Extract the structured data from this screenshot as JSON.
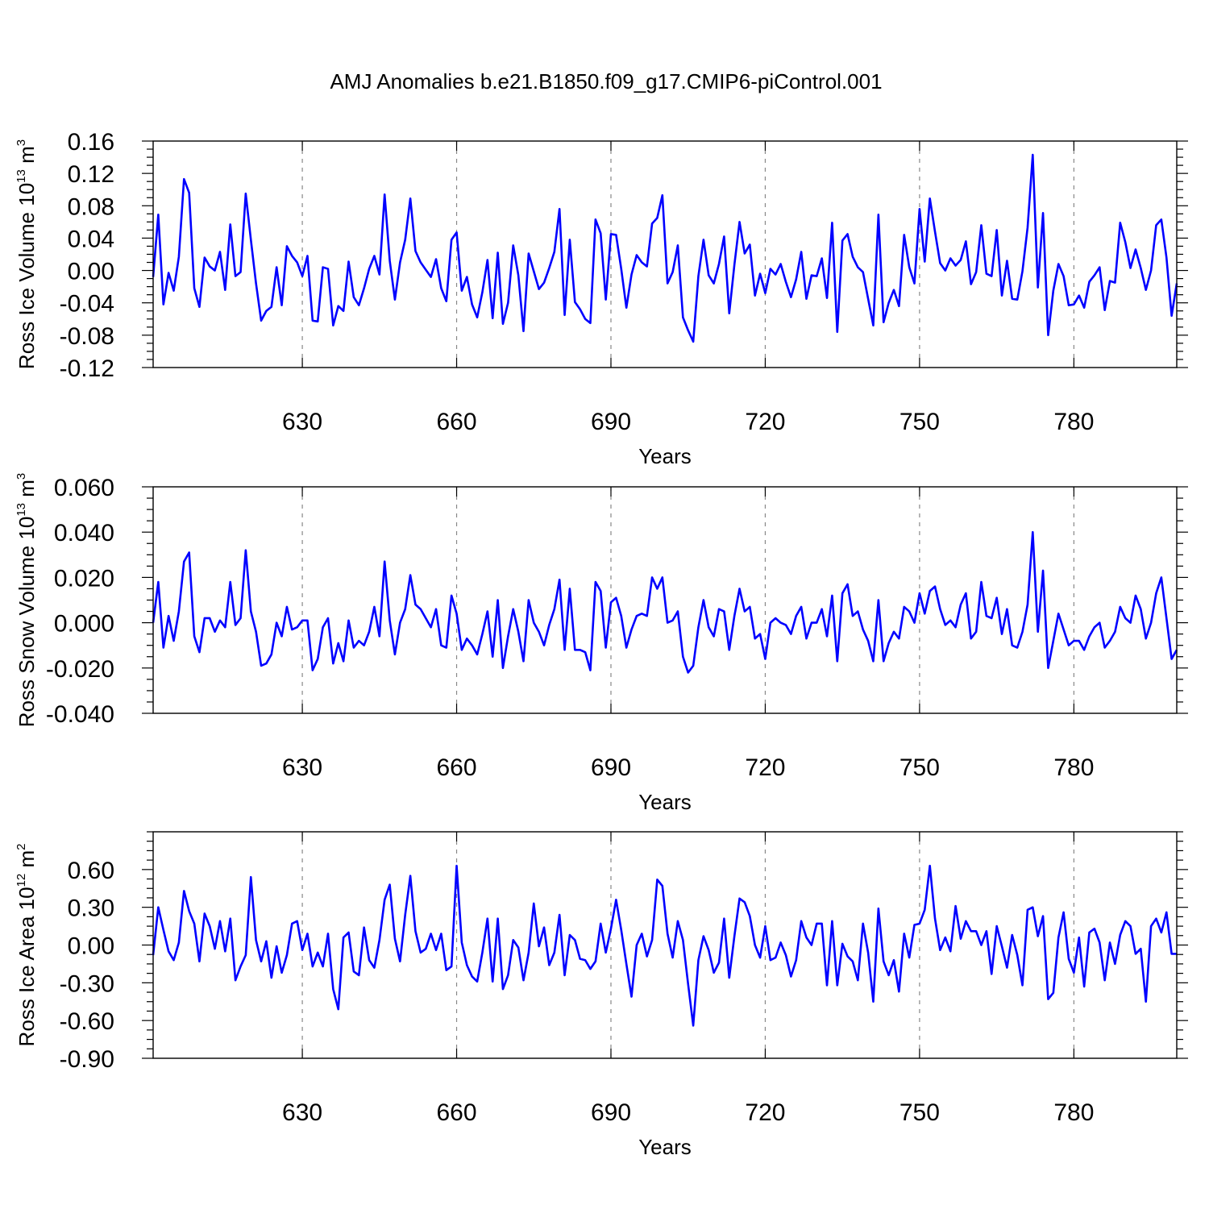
{
  "figure": {
    "title": "AMJ Anomalies b.e21.B1850.f09_g17.CMIP6-piControl.001"
  },
  "chart_data": [
    {
      "type": "line",
      "title": "AMJ Anomalies b.e21.B1850.f09_g17.CMIP6-piControl.001",
      "xlabel": "Years",
      "ylabel": "Ross Ice Volume 10",
      "ylabel_exp": "13",
      "ylabel_unit": "m",
      "ylabel_unit_exp": "3",
      "xlim": [
        601,
        800
      ],
      "ylim": [
        -0.12,
        0.16
      ],
      "xticks": [
        "630",
        "660",
        "690",
        "720",
        "750",
        "780"
      ],
      "yticks": [
        "0.16",
        "0.12",
        "0.08",
        "0.04",
        "0.00",
        "-0.04",
        "-0.08",
        "-0.12"
      ],
      "grid": "vertical dashed",
      "color": "#0000ff",
      "values": [
        -0.008,
        0.069,
        -0.042,
        -0.003,
        -0.025,
        0.017,
        0.113,
        0.096,
        -0.022,
        -0.045,
        0.016,
        0.005,
        0.0,
        0.023,
        -0.024,
        0.057,
        -0.007,
        -0.002,
        0.095,
        0.038,
        -0.016,
        -0.062,
        -0.05,
        -0.045,
        0.004,
        -0.043,
        0.03,
        0.018,
        0.01,
        -0.007,
        0.018,
        -0.062,
        -0.063,
        0.004,
        0.002,
        -0.068,
        -0.044,
        -0.05,
        0.011,
        -0.033,
        -0.043,
        -0.022,
        0.002,
        0.018,
        -0.005,
        0.094,
        0.012,
        -0.036,
        0.01,
        0.038,
        0.089,
        0.024,
        0.01,
        0.001,
        -0.008,
        0.014,
        -0.022,
        -0.038,
        0.038,
        0.047,
        -0.025,
        -0.008,
        -0.042,
        -0.058,
        -0.027,
        0.013,
        -0.059,
        0.022,
        -0.066,
        -0.04,
        0.031,
        -0.006,
        -0.075,
        0.021,
        -0.001,
        -0.023,
        -0.015,
        0.003,
        0.023,
        0.076,
        -0.055,
        0.038,
        -0.039,
        -0.048,
        -0.06,
        -0.065,
        0.063,
        0.046,
        -0.036,
        0.045,
        0.044,
        0.002,
        -0.046,
        -0.005,
        0.019,
        0.01,
        0.005,
        0.058,
        0.065,
        0.093,
        -0.016,
        -0.002,
        0.031,
        -0.058,
        -0.074,
        -0.088,
        -0.007,
        0.038,
        -0.006,
        -0.016,
        0.008,
        0.042,
        -0.053,
        0.007,
        0.06,
        0.021,
        0.032,
        -0.031,
        -0.004,
        -0.028,
        0.002,
        -0.005,
        0.008,
        -0.014,
        -0.033,
        -0.011,
        0.023,
        -0.035,
        -0.006,
        -0.007,
        0.015,
        -0.034,
        0.059,
        -0.076,
        0.037,
        0.045,
        0.017,
        0.004,
        -0.002,
        -0.035,
        -0.068,
        0.069,
        -0.064,
        -0.04,
        -0.024,
        -0.044,
        0.044,
        0.004,
        -0.016,
        0.076,
        0.011,
        0.089,
        0.048,
        0.009,
        0.0,
        0.015,
        0.006,
        0.013,
        0.036,
        -0.017,
        -0.002,
        0.056,
        -0.004,
        -0.007,
        0.05,
        -0.031,
        0.012,
        -0.035,
        -0.036,
        -0.001,
        0.053,
        0.143,
        -0.021,
        0.071,
        -0.08,
        -0.025,
        0.008,
        -0.007,
        -0.043,
        -0.042,
        -0.031,
        -0.046,
        -0.014,
        -0.006,
        0.004,
        -0.049,
        -0.013,
        -0.015,
        0.059,
        0.035,
        0.003,
        0.026,
        0.003,
        -0.024,
        0.0,
        0.056,
        0.063,
        0.016,
        -0.056,
        -0.016
      ]
    },
    {
      "type": "line",
      "xlabel": "Years",
      "ylabel": "Ross Snow Volume 10",
      "ylabel_exp": "13",
      "ylabel_unit": "m",
      "ylabel_unit_exp": "3",
      "xlim": [
        601,
        800
      ],
      "ylim": [
        -0.04,
        0.06
      ],
      "xticks": [
        "630",
        "660",
        "690",
        "720",
        "750",
        "780"
      ],
      "yticks": [
        "0.060",
        "0.040",
        "0.020",
        "0.000",
        "-0.020",
        "-0.040"
      ],
      "grid": "vertical dashed",
      "color": "#0000ff",
      "values": [
        0.0,
        0.018,
        -0.011,
        0.003,
        -0.008,
        0.005,
        0.027,
        0.031,
        -0.006,
        -0.013,
        0.002,
        0.002,
        -0.004,
        0.001,
        -0.002,
        0.018,
        -0.001,
        0.002,
        0.032,
        0.005,
        -0.004,
        -0.019,
        -0.018,
        -0.014,
        0.0,
        -0.006,
        0.007,
        -0.003,
        -0.002,
        0.001,
        0.001,
        -0.021,
        -0.016,
        -0.002,
        0.002,
        -0.018,
        -0.009,
        -0.017,
        0.001,
        -0.011,
        -0.008,
        -0.01,
        -0.004,
        0.007,
        -0.006,
        0.027,
        0.001,
        -0.014,
        0.0,
        0.006,
        0.021,
        0.008,
        0.006,
        0.002,
        -0.002,
        0.006,
        -0.01,
        -0.011,
        0.012,
        0.004,
        -0.012,
        -0.007,
        -0.01,
        -0.014,
        -0.005,
        0.005,
        -0.015,
        0.01,
        -0.02,
        -0.006,
        0.006,
        -0.004,
        -0.017,
        0.01,
        0.0,
        -0.004,
        -0.01,
        -0.001,
        0.006,
        0.019,
        -0.012,
        0.015,
        -0.012,
        -0.012,
        -0.013,
        -0.021,
        0.018,
        0.014,
        -0.011,
        0.009,
        0.011,
        0.003,
        -0.011,
        -0.003,
        0.003,
        0.004,
        0.003,
        0.02,
        0.015,
        0.02,
        0.0,
        0.001,
        0.005,
        -0.015,
        -0.022,
        -0.019,
        -0.002,
        0.01,
        -0.002,
        -0.006,
        0.006,
        0.005,
        -0.012,
        0.003,
        0.015,
        0.005,
        0.007,
        -0.007,
        -0.005,
        -0.016,
        0.0,
        0.002,
        0.0,
        -0.001,
        -0.005,
        0.003,
        0.007,
        -0.007,
        0.0,
        0.0,
        0.006,
        -0.006,
        0.012,
        -0.017,
        0.013,
        0.017,
        0.003,
        0.005,
        -0.003,
        -0.008,
        -0.017,
        0.01,
        -0.017,
        -0.009,
        -0.004,
        -0.007,
        0.007,
        0.005,
        0.0,
        0.013,
        0.004,
        0.014,
        0.016,
        0.006,
        -0.001,
        0.001,
        -0.002,
        0.008,
        0.013,
        -0.007,
        -0.004,
        0.018,
        0.003,
        0.002,
        0.011,
        -0.005,
        0.006,
        -0.01,
        -0.011,
        -0.004,
        0.008,
        0.04,
        -0.004,
        0.023,
        -0.02,
        -0.008,
        0.004,
        -0.003,
        -0.01,
        -0.008,
        -0.008,
        -0.012,
        -0.006,
        -0.002,
        0.0,
        -0.011,
        -0.008,
        -0.004,
        0.007,
        0.002,
        0.0,
        0.012,
        0.006,
        -0.007,
        0.0,
        0.013,
        0.02,
        0.002,
        -0.016,
        -0.012
      ]
    },
    {
      "type": "line",
      "xlabel": "Years",
      "ylabel": "Ross Ice Area 10",
      "ylabel_exp": "12",
      "ylabel_unit": "m",
      "ylabel_unit_exp": "2",
      "xlim": [
        601,
        800
      ],
      "ylim": [
        -0.9,
        0.9
      ],
      "xticks": [
        "630",
        "660",
        "690",
        "720",
        "750",
        "780"
      ],
      "yticks": [
        "0.60",
        "0.30",
        "0.00",
        "-0.30",
        "-0.60",
        "-0.90"
      ],
      "grid": "vertical dashed",
      "color": "#0000ff",
      "values": [
        -0.08,
        0.3,
        0.12,
        -0.05,
        -0.12,
        0.02,
        0.43,
        0.27,
        0.17,
        -0.13,
        0.25,
        0.15,
        -0.03,
        0.19,
        -0.05,
        0.21,
        -0.28,
        -0.17,
        -0.08,
        0.54,
        0.04,
        -0.13,
        0.03,
        -0.26,
        -0.01,
        -0.22,
        -0.08,
        0.17,
        0.19,
        -0.04,
        0.09,
        -0.17,
        -0.06,
        -0.17,
        0.09,
        -0.35,
        -0.51,
        0.06,
        0.1,
        -0.21,
        -0.24,
        0.14,
        -0.12,
        -0.18,
        0.04,
        0.36,
        0.48,
        0.05,
        -0.13,
        0.24,
        0.55,
        0.11,
        -0.06,
        -0.03,
        0.09,
        -0.04,
        0.09,
        -0.2,
        -0.17,
        0.63,
        0.02,
        -0.16,
        -0.25,
        -0.29,
        -0.06,
        0.21,
        -0.29,
        0.21,
        -0.35,
        -0.24,
        0.04,
        -0.02,
        -0.28,
        -0.06,
        0.33,
        -0.01,
        0.14,
        -0.16,
        -0.06,
        0.24,
        -0.24,
        0.08,
        0.04,
        -0.11,
        -0.12,
        -0.19,
        -0.13,
        0.17,
        -0.06,
        0.13,
        0.36,
        0.12,
        -0.15,
        -0.41,
        0.0,
        0.09,
        -0.09,
        0.04,
        0.52,
        0.47,
        0.09,
        -0.1,
        0.19,
        0.04,
        -0.31,
        -0.64,
        -0.12,
        0.07,
        -0.04,
        -0.22,
        -0.14,
        0.21,
        -0.26,
        0.07,
        0.37,
        0.34,
        0.23,
        0.0,
        -0.1,
        0.15,
        -0.12,
        -0.1,
        0.02,
        -0.08,
        -0.25,
        -0.12,
        0.19,
        0.06,
        0.0,
        0.17,
        0.17,
        -0.32,
        0.19,
        -0.32,
        0.01,
        -0.09,
        -0.13,
        -0.28,
        0.17,
        -0.06,
        -0.45,
        0.29,
        -0.13,
        -0.24,
        -0.12,
        -0.37,
        0.09,
        -0.1,
        0.16,
        0.17,
        0.28,
        0.63,
        0.21,
        -0.04,
        0.06,
        -0.05,
        0.31,
        0.05,
        0.19,
        0.11,
        0.11,
        0.0,
        0.11,
        -0.23,
        0.15,
        -0.01,
        -0.18,
        0.08,
        -0.08,
        -0.32,
        0.28,
        0.3,
        0.07,
        0.23,
        -0.43,
        -0.38,
        0.06,
        0.26,
        -0.11,
        -0.22,
        0.06,
        -0.33,
        0.1,
        0.13,
        0.02,
        -0.28,
        0.02,
        -0.15,
        0.08,
        0.19,
        0.15,
        -0.07,
        -0.03,
        -0.45,
        0.15,
        0.21,
        0.1,
        0.26,
        -0.07,
        -0.07
      ]
    }
  ]
}
